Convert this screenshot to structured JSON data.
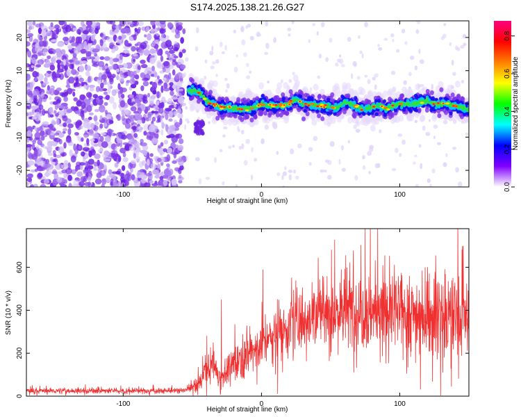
{
  "title": "S174.2025.138.21.26.G27",
  "chart_data": [
    {
      "type": "heatmap",
      "xlabel": "Height of straight line (km)",
      "ylabel": "Frequency (Hz)",
      "xlim": [
        -170,
        150
      ],
      "ylim": [
        -25,
        25
      ],
      "xticks": [
        -100,
        0,
        100
      ],
      "yticks": [
        -20,
        -10,
        0,
        10,
        20
      ],
      "noise_region_x": [
        -170,
        -56
      ],
      "signal_track": {
        "x": [
          -53,
          -48,
          -44,
          -40,
          -35,
          -30,
          -25,
          -20,
          -15,
          -10,
          -5,
          0,
          5,
          10,
          15,
          20,
          25,
          30,
          35,
          40,
          45,
          50,
          55,
          60,
          65,
          70,
          75,
          80,
          85,
          90,
          95,
          100,
          105,
          110,
          115,
          120,
          125,
          130,
          135,
          140,
          145,
          150
        ],
        "frequency": [
          4,
          4,
          3,
          1,
          0,
          -1,
          -1,
          -1.5,
          -1.5,
          -1.5,
          -1,
          0,
          -0.5,
          -0.5,
          -0.5,
          0,
          1.5,
          0,
          0,
          -0.5,
          -0.5,
          -1,
          -1,
          0.5,
          0,
          -1,
          -1.5,
          -1,
          -0.5,
          -1.5,
          -0.5,
          0,
          0,
          0,
          0.5,
          1,
          0,
          0,
          0,
          -0.5,
          -1,
          -2
        ]
      },
      "colorbar": {
        "label": "Normalized spectral amplitude",
        "range": [
          0.0,
          0.88
        ],
        "ticks": [
          "0.0",
          "0.2",
          "0.4",
          "0.6",
          "0.8"
        ],
        "colors": [
          "#ffffff",
          "#8000ff",
          "#0000ff",
          "#00ffff",
          "#00ff00",
          "#ffff00",
          "#ff8000",
          "#ff0000",
          "#ff0080"
        ]
      }
    },
    {
      "type": "line",
      "xlabel": "Height of straight line (km)",
      "ylabel": "SNR (10 * v/v)",
      "xlim": [
        -170,
        150
      ],
      "ylim": [
        0,
        780
      ],
      "xticks": [
        -100,
        0,
        100
      ],
      "yticks": [
        0,
        200,
        400,
        600
      ],
      "color": "#f03030",
      "envelope": {
        "x": [
          -170,
          -60,
          -55,
          -45,
          -40,
          -35,
          -30,
          -25,
          -20,
          -10,
          0,
          10,
          20,
          30,
          40,
          60,
          80,
          100,
          120,
          140,
          150
        ],
        "mean": [
          25,
          25,
          28,
          60,
          130,
          150,
          90,
          110,
          160,
          200,
          240,
          290,
          330,
          360,
          390,
          400,
          400,
          390,
          380,
          370,
          360
        ],
        "spread": [
          12,
          12,
          15,
          35,
          60,
          80,
          50,
          60,
          80,
          90,
          100,
          110,
          120,
          130,
          150,
          170,
          180,
          170,
          170,
          180,
          170
        ]
      },
      "spikes": [
        {
          "x": -29,
          "y": 450
        },
        {
          "x": 1,
          "y": 590
        },
        {
          "x": 75,
          "y": 780
        },
        {
          "x": 84,
          "y": 780
        },
        {
          "x": 126,
          "y": 655
        },
        {
          "x": 146,
          "y": 700
        }
      ]
    }
  ]
}
